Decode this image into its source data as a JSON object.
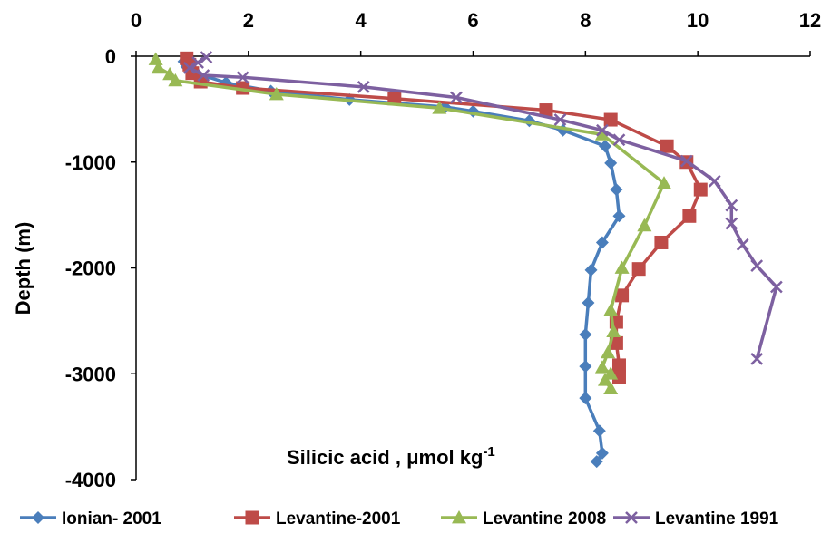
{
  "chart_data": {
    "type": "line",
    "xlabel_main": "Silicic acid , ",
    "xlabel_unit": "μmol kg",
    "xlabel_sup": "-1",
    "ylabel": "Depth (m)",
    "xlim": [
      0,
      12
    ],
    "ylim": [
      -4000,
      0
    ],
    "x_ticks": [
      0,
      2,
      4,
      6,
      8,
      10,
      12
    ],
    "y_ticks": [
      0,
      -1000,
      -2000,
      -3000,
      -4000
    ],
    "x_axis_position": "top",
    "grid": false,
    "legend_position": "bottom",
    "series": [
      {
        "name": "Ionian- 2001",
        "color": "#4a7ebb",
        "marker": "diamond",
        "points": [
          [
            0.85,
            -50
          ],
          [
            0.9,
            -100
          ],
          [
            1.0,
            -150
          ],
          [
            1.6,
            -250
          ],
          [
            2.4,
            -330
          ],
          [
            3.8,
            -410
          ],
          [
            5.5,
            -480
          ],
          [
            6.0,
            -520
          ],
          [
            7.0,
            -610
          ],
          [
            7.6,
            -700
          ],
          [
            8.35,
            -850
          ],
          [
            8.45,
            -1010
          ],
          [
            8.55,
            -1260
          ],
          [
            8.6,
            -1510
          ],
          [
            8.3,
            -1760
          ],
          [
            8.1,
            -2020
          ],
          [
            8.05,
            -2330
          ],
          [
            8.0,
            -2630
          ],
          [
            8.0,
            -2930
          ],
          [
            8.0,
            -3230
          ],
          [
            8.25,
            -3540
          ],
          [
            8.3,
            -3750
          ],
          [
            8.2,
            -3830
          ]
        ]
      },
      {
        "name": "Levantine-2001",
        "color": "#be4b48",
        "marker": "square",
        "points": [
          [
            0.9,
            -20
          ],
          [
            0.95,
            -80
          ],
          [
            1.0,
            -160
          ],
          [
            1.15,
            -240
          ],
          [
            1.9,
            -300
          ],
          [
            4.6,
            -400
          ],
          [
            7.3,
            -510
          ],
          [
            8.45,
            -600
          ],
          [
            9.45,
            -850
          ],
          [
            9.8,
            -1000
          ],
          [
            10.05,
            -1260
          ],
          [
            9.85,
            -1510
          ],
          [
            9.35,
            -1760
          ],
          [
            8.95,
            -2010
          ],
          [
            8.65,
            -2260
          ],
          [
            8.55,
            -2510
          ],
          [
            8.55,
            -2710
          ],
          [
            8.6,
            -2920
          ],
          [
            8.6,
            -3030
          ]
        ]
      },
      {
        "name": "Levantine 2008",
        "color": "#98b954",
        "marker": "triangle",
        "points": [
          [
            0.35,
            -30
          ],
          [
            0.4,
            -110
          ],
          [
            0.6,
            -170
          ],
          [
            0.7,
            -230
          ],
          [
            2.5,
            -360
          ],
          [
            5.4,
            -490
          ],
          [
            8.3,
            -740
          ],
          [
            9.4,
            -1200
          ],
          [
            9.05,
            -1600
          ],
          [
            8.65,
            -2000
          ],
          [
            8.45,
            -2400
          ],
          [
            8.5,
            -2600
          ],
          [
            8.4,
            -2800
          ],
          [
            8.3,
            -2940
          ],
          [
            8.45,
            -3000
          ],
          [
            8.35,
            -3060
          ],
          [
            8.45,
            -3140
          ]
        ]
      },
      {
        "name": "Levantine 1991",
        "color": "#7d60a0",
        "marker": "x",
        "points": [
          [
            1.25,
            -10
          ],
          [
            1.1,
            -60
          ],
          [
            0.95,
            -110
          ],
          [
            1.2,
            -180
          ],
          [
            1.9,
            -200
          ],
          [
            4.05,
            -290
          ],
          [
            5.7,
            -390
          ],
          [
            7.55,
            -600
          ],
          [
            8.3,
            -700
          ],
          [
            8.6,
            -790
          ],
          [
            9.8,
            -990
          ],
          [
            10.3,
            -1180
          ],
          [
            10.6,
            -1410
          ],
          [
            10.6,
            -1580
          ],
          [
            10.8,
            -1780
          ],
          [
            11.05,
            -1980
          ],
          [
            11.4,
            -2180
          ],
          [
            11.05,
            -2860
          ]
        ]
      }
    ]
  }
}
